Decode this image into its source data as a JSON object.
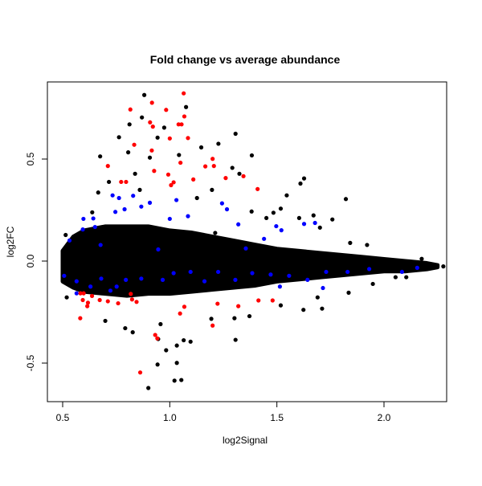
{
  "chart_data": {
    "type": "scatter",
    "title": "Fold change vs average abundance",
    "xlabel": "log2Signal",
    "ylabel": "log2FC",
    "xlim": [
      0.43,
      2.3
    ],
    "ylim": [
      -0.69,
      0.88
    ],
    "xticks": [
      {
        "v": 0.5,
        "label": "0.5"
      },
      {
        "v": 1.0,
        "label": "1.0"
      },
      {
        "v": 1.5,
        "label": "1.5"
      },
      {
        "v": 2.0,
        "label": "2.0"
      }
    ],
    "yticks": [
      {
        "v": -0.5,
        "label": "-0.5"
      },
      {
        "v": 0.0,
        "label": "0.0"
      },
      {
        "v": 0.5,
        "label": "0.5"
      }
    ],
    "grid": false,
    "legend": "none",
    "colors": {
      "all": "#000000",
      "highlight_blue": "#0000ff",
      "highlight_red": "#ff0000"
    },
    "dense_region": {
      "x": [
        0.5,
        0.55,
        0.6,
        0.7,
        0.8,
        0.9,
        1.0,
        1.1,
        1.2,
        1.3,
        1.4,
        1.5,
        1.6,
        1.7,
        1.8,
        1.9,
        2.0,
        2.1,
        2.2,
        2.25
      ],
      "upper": [
        0.05,
        0.12,
        0.15,
        0.17,
        0.17,
        0.17,
        0.15,
        0.14,
        0.12,
        0.1,
        0.08,
        0.06,
        0.05,
        0.04,
        0.03,
        0.02,
        0.01,
        0.0,
        -0.01,
        -0.02
      ],
      "lower": [
        -0.1,
        -0.13,
        -0.15,
        -0.16,
        -0.17,
        -0.16,
        -0.16,
        -0.15,
        -0.14,
        -0.13,
        -0.12,
        -0.1,
        -0.09,
        -0.08,
        -0.07,
        -0.06,
        -0.05,
        -0.05,
        -0.04,
        -0.03
      ]
    },
    "series": [
      {
        "color": "#000000",
        "points": [
          [
            0.881,
            0.814
          ],
          [
            1.076,
            0.755
          ],
          [
            0.87,
            0.704
          ],
          [
            0.812,
            0.67
          ],
          [
            0.974,
            0.654
          ],
          [
            1.307,
            0.624
          ],
          [
            0.763,
            0.607
          ],
          [
            1.227,
            0.575
          ],
          [
            1.147,
            0.557
          ],
          [
            1.383,
            0.518
          ],
          [
            0.675,
            0.513
          ],
          [
            0.907,
            0.507
          ],
          [
            0.806,
            0.533
          ],
          [
            1.292,
            0.457
          ],
          [
            1.325,
            0.428
          ],
          [
            1.627,
            0.405
          ],
          [
            1.61,
            0.38
          ],
          [
            1.822,
            0.304
          ],
          [
            1.546,
            0.322
          ],
          [
            1.759,
            0.204
          ],
          [
            1.701,
            0.164
          ],
          [
            1.921,
            0.079
          ],
          [
            1.842,
            0.089
          ],
          [
            2.277,
            -0.026
          ],
          [
            2.176,
            0.011
          ],
          [
            2.104,
            -0.079
          ],
          [
            2.054,
            -0.079
          ],
          [
            1.948,
            -0.112
          ],
          [
            1.835,
            -0.155
          ],
          [
            1.711,
            -0.233
          ],
          [
            1.624,
            -0.239
          ],
          [
            1.69,
            -0.178
          ],
          [
            1.307,
            -0.386
          ],
          [
            1.097,
            -0.395
          ],
          [
            1.065,
            -0.388
          ],
          [
            1.033,
            -0.499
          ],
          [
            1.022,
            -0.586
          ],
          [
            1.054,
            -0.583
          ],
          [
            0.9,
            -0.622
          ],
          [
            0.946,
            -0.382
          ],
          [
            0.983,
            -0.437
          ],
          [
            1.033,
            -0.414
          ],
          [
            0.943,
            -0.507
          ],
          [
            0.827,
            -0.349
          ],
          [
            0.792,
            -0.329
          ],
          [
            0.699,
            -0.293
          ],
          [
            0.519,
            -0.178
          ],
          [
            0.957,
            -0.309
          ],
          [
            1.194,
            -0.283
          ],
          [
            1.372,
            -0.27
          ],
          [
            1.302,
            -0.28
          ],
          [
            1.518,
            -0.217
          ],
          [
            0.514,
            0.128
          ],
          [
            0.638,
            0.239
          ],
          [
            0.666,
            0.336
          ],
          [
            0.716,
            0.388
          ],
          [
            0.838,
            0.428
          ],
          [
            0.86,
            0.349
          ],
          [
            0.943,
            0.605
          ],
          [
            1.043,
            0.52
          ],
          [
            1.127,
            0.309
          ],
          [
            1.197,
            0.349
          ],
          [
            1.451,
            0.211
          ],
          [
            1.484,
            0.237
          ],
          [
            1.518,
            0.257
          ],
          [
            1.604,
            0.211
          ],
          [
            1.671,
            0.224
          ],
          [
            1.382,
            0.243
          ],
          [
            1.212,
            0.138
          ],
          [
            0.583,
            0.086
          ]
        ]
      },
      {
        "color": "#0000ff",
        "points": [
          [
            0.597,
            0.207
          ],
          [
            0.643,
            0.209
          ],
          [
            0.532,
            0.101
          ],
          [
            0.733,
            0.322
          ],
          [
            0.763,
            0.309
          ],
          [
            0.829,
            0.32
          ],
          [
            0.789,
            0.254
          ],
          [
            0.746,
            0.241
          ],
          [
            0.907,
            0.286
          ],
          [
            0.867,
            0.267
          ],
          [
            1.031,
            0.299
          ],
          [
            1.0,
            0.207
          ],
          [
            1.085,
            0.22
          ],
          [
            1.244,
            0.283
          ],
          [
            1.267,
            0.254
          ],
          [
            1.32,
            0.18
          ],
          [
            1.497,
            0.171
          ],
          [
            1.521,
            0.151
          ],
          [
            1.627,
            0.182
          ],
          [
            1.678,
            0.187
          ],
          [
            1.44,
            0.109
          ],
          [
            1.355,
            0.062
          ],
          [
            0.946,
            0.057
          ],
          [
            0.677,
            0.079
          ],
          [
            0.594,
            0.155
          ],
          [
            0.651,
            0.167
          ],
          [
            0.507,
            -0.072
          ],
          [
            0.565,
            -0.099
          ],
          [
            0.63,
            -0.125
          ],
          [
            0.68,
            -0.086
          ],
          [
            0.752,
            -0.125
          ],
          [
            0.795,
            -0.092
          ],
          [
            0.867,
            -0.086
          ],
          [
            0.967,
            -0.092
          ],
          [
            1.018,
            -0.059
          ],
          [
            1.097,
            -0.053
          ],
          [
            1.162,
            -0.099
          ],
          [
            1.226,
            -0.053
          ],
          [
            1.306,
            -0.092
          ],
          [
            1.385,
            -0.059
          ],
          [
            1.471,
            -0.066
          ],
          [
            1.557,
            -0.072
          ],
          [
            1.643,
            -0.092
          ],
          [
            1.715,
            -0.132
          ],
          [
            1.73,
            -0.053
          ],
          [
            1.83,
            -0.053
          ],
          [
            1.931,
            -0.039
          ],
          [
            2.084,
            -0.053
          ],
          [
            2.155,
            -0.033
          ],
          [
            1.514,
            -0.125
          ],
          [
            0.565,
            -0.158
          ],
          [
            0.723,
            -0.145
          ]
        ]
      },
      {
        "color": "#ff0000",
        "points": [
          [
            1.065,
            0.822
          ],
          [
            0.816,
            0.743
          ],
          [
            0.917,
            0.776
          ],
          [
            0.983,
            0.741
          ],
          [
            1.068,
            0.709
          ],
          [
            0.908,
            0.68
          ],
          [
            0.921,
            0.659
          ],
          [
            1.041,
            0.67
          ],
          [
            1.055,
            0.67
          ],
          [
            1.0,
            0.601
          ],
          [
            1.085,
            0.603
          ],
          [
            0.834,
            0.57
          ],
          [
            0.916,
            0.542
          ],
          [
            1.2,
            0.501
          ],
          [
            1.166,
            0.464
          ],
          [
            1.206,
            0.466
          ],
          [
            1.05,
            0.482
          ],
          [
            0.711,
            0.466
          ],
          [
            0.927,
            0.442
          ],
          [
            0.993,
            0.424
          ],
          [
            1.018,
            0.386
          ],
          [
            1.006,
            0.372
          ],
          [
            1.11,
            0.4
          ],
          [
            1.261,
            0.407
          ],
          [
            1.344,
            0.416
          ],
          [
            1.41,
            0.353
          ],
          [
            0.773,
            0.388
          ],
          [
            0.796,
            0.388
          ],
          [
            0.583,
            -0.158
          ],
          [
            0.598,
            -0.158
          ],
          [
            0.637,
            -0.171
          ],
          [
            0.594,
            -0.191
          ],
          [
            0.618,
            -0.204
          ],
          [
            0.615,
            -0.221
          ],
          [
            0.673,
            -0.191
          ],
          [
            0.711,
            -0.197
          ],
          [
            0.759,
            -0.207
          ],
          [
            0.818,
            -0.161
          ],
          [
            0.824,
            -0.188
          ],
          [
            0.845,
            -0.2
          ],
          [
            0.582,
            -0.28
          ],
          [
            1.068,
            -0.224
          ],
          [
            1.048,
            -0.257
          ],
          [
            1.223,
            -0.209
          ],
          [
            1.32,
            -0.221
          ],
          [
            1.414,
            -0.193
          ],
          [
            1.48,
            -0.193
          ],
          [
            1.2,
            -0.316
          ],
          [
            0.932,
            -0.362
          ],
          [
            0.942,
            -0.379
          ],
          [
            0.862,
            -0.546
          ]
        ]
      }
    ]
  }
}
